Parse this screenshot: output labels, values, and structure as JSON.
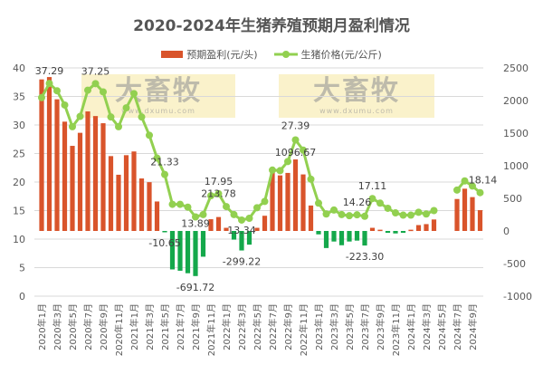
{
  "chart_data": {
    "type": "bar+line",
    "title": "2020-2024年生猪养殖预期月盈利情况",
    "legend_position": "top",
    "grid": true,
    "categories": [
      "2020年1月",
      "2020年2月",
      "2020年3月",
      "2020年4月",
      "2020年5月",
      "2020年6月",
      "2020年7月",
      "2020年8月",
      "2020年9月",
      "2020年10月",
      "2020年11月",
      "2020年12月",
      "2021年1月",
      "2021年2月",
      "2021年3月",
      "2021年4月",
      "2021年5月",
      "2021年6月",
      "2021年7月",
      "2021年8月",
      "2021年9月",
      "2021年10月",
      "2021年11月",
      "2021年12月",
      "2022年1月",
      "2022年2月",
      "2022年3月",
      "2022年4月",
      "2022年5月",
      "2022年6月",
      "2022年7月",
      "2022年8月",
      "2022年9月",
      "2022年10月",
      "2022年11月",
      "2022年12月",
      "2023年1月",
      "2023年2月",
      "2023年3月",
      "2023年4月",
      "2023年5月",
      "2023年6月",
      "2023年7月",
      "2023年8月",
      "2023年9月",
      "2023年10月",
      "2023年11月",
      "2023年12月",
      "2024年1月",
      "2024年2月",
      "2024年3月",
      "2024年4月",
      "2024年5月",
      "2024年6月",
      "2024年7月",
      "2024年8月",
      "2024年9月",
      "2024年10月"
    ],
    "left_axis": {
      "ylim": [
        0,
        40
      ],
      "ticks": [
        "0",
        "5",
        "10",
        "15",
        "20",
        "25",
        "30",
        "35",
        "40"
      ]
    },
    "right_axis": {
      "ylim": [
        -1000,
        2500
      ],
      "ticks": [
        "-1000",
        "-500",
        "0",
        "500",
        "1000",
        "1500",
        "2000",
        "2500"
      ]
    },
    "series": [
      {
        "name": "预期盈利(元/头)",
        "type": "bar",
        "axis": "right",
        "color_positive": "#d9542b",
        "color_negative": "#14a84b",
        "values": [
          2324,
          2360,
          2019,
          1676,
          1305,
          1505,
          1833,
          1762,
          1652,
          1148,
          862,
          1162,
          1219,
          805,
          748,
          452,
          -10.65,
          -590,
          -610,
          -648,
          -691.72,
          -395,
          180,
          213.78,
          48,
          -133,
          -299.22,
          -210,
          48,
          233,
          890,
          852,
          890,
          1096.67,
          867,
          390,
          -52,
          -262,
          -162,
          -219,
          -162,
          -148,
          -223.3,
          48,
          19,
          -29,
          -38,
          -29,
          19,
          90,
          105,
          176,
          null,
          null,
          490,
          648,
          519,
          319
        ]
      },
      {
        "name": "生猪价格(元/公斤)",
        "type": "line",
        "axis": "left",
        "color": "#92d050",
        "values": [
          34.8,
          37.29,
          36.0,
          33.5,
          29.7,
          31.5,
          36.1,
          37.25,
          35.8,
          31.4,
          29.7,
          33.0,
          35.5,
          31.4,
          28.2,
          24.2,
          21.33,
          16.1,
          16.1,
          15.6,
          13.89,
          14.3,
          17.6,
          17.95,
          15.7,
          14.3,
          13.34,
          13.65,
          15.5,
          16.6,
          22.1,
          22.0,
          23.6,
          27.39,
          25.6,
          20.5,
          16.3,
          14.4,
          15.1,
          14.3,
          14.1,
          14.26,
          14.0,
          17.11,
          16.3,
          15.4,
          14.6,
          14.2,
          14.2,
          14.7,
          14.4,
          15.0,
          null,
          null,
          18.6,
          20.2,
          19.3,
          18.14
        ]
      }
    ],
    "price_labels": [
      {
        "i": 1,
        "text": "37.29"
      },
      {
        "i": 7,
        "text": "37.25"
      },
      {
        "i": 16,
        "text": "21.33"
      },
      {
        "i": 20,
        "text": "13.89"
      },
      {
        "i": 23,
        "text": "17.95"
      },
      {
        "i": 26,
        "text": "13.34"
      },
      {
        "i": 33,
        "text": "27.39"
      },
      {
        "i": 41,
        "text": "14.26"
      },
      {
        "i": 43,
        "text": "17.11"
      },
      {
        "i": 57,
        "text": "18.14"
      }
    ],
    "profit_labels": [
      {
        "i": 16,
        "text": "-10.65"
      },
      {
        "i": 20,
        "text": "-691.72"
      },
      {
        "i": 23,
        "text": "213.78"
      },
      {
        "i": 26,
        "text": "-299.22"
      },
      {
        "i": 33,
        "text": "1096.67"
      },
      {
        "i": 42,
        "text": "-223.30"
      }
    ]
  },
  "watermark": {
    "brand": "大畜牧",
    "url": "www.dxumu.com"
  }
}
